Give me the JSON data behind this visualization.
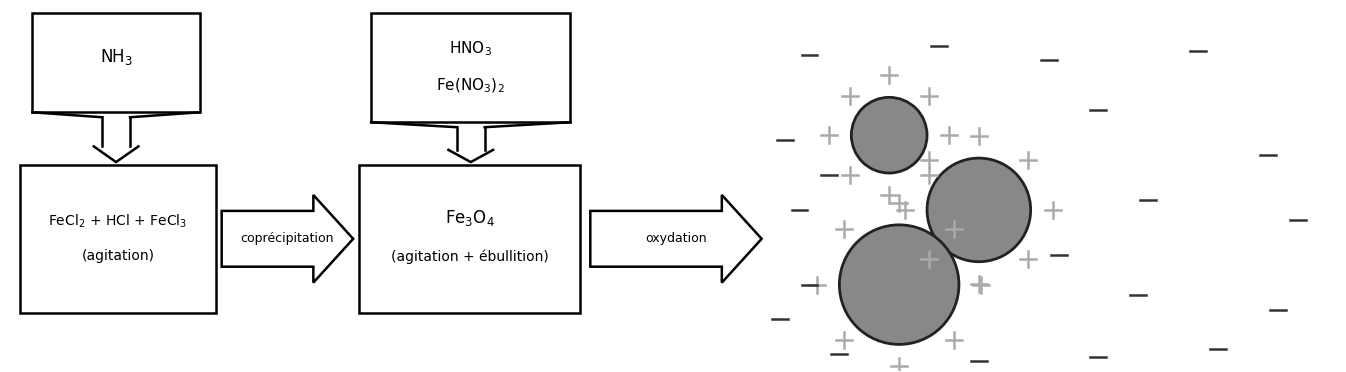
{
  "bg_color": "#ffffff",
  "arrow1_label": "coprécipitation",
  "arrow2_label": "oxydation",
  "plus_color": "#aaaaaa",
  "minus_color": "#333333",
  "circle_color": "#888888",
  "circle_edge": "#222222",
  "lw": 1.8,
  "fs": 10
}
